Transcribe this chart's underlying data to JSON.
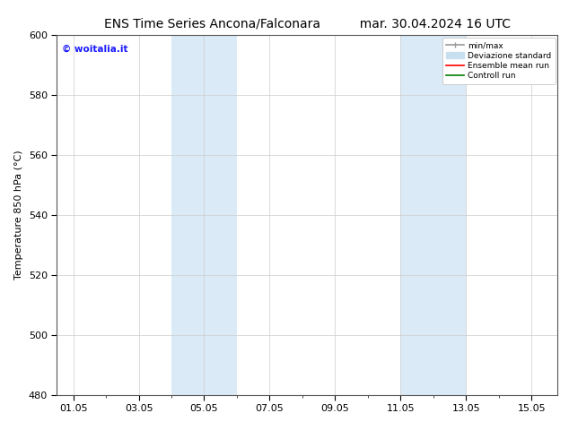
{
  "title_left": "ENS Time Series Ancona/Falconara",
  "title_right": "mar. 30.04.2024 16 UTC",
  "ylabel": "Temperature 850 hPa (°C)",
  "ylim": [
    480,
    600
  ],
  "yticks": [
    480,
    500,
    520,
    540,
    560,
    580,
    600
  ],
  "xtick_labels": [
    "01.05",
    "03.05",
    "05.05",
    "07.05",
    "09.05",
    "11.05",
    "13.05",
    "15.05"
  ],
  "xtick_positions": [
    0,
    2,
    4,
    6,
    8,
    10,
    12,
    14
  ],
  "xlim": [
    -0.5,
    14.8
  ],
  "shaded_regions": [
    {
      "x_start": 3.0,
      "x_end": 5.0
    },
    {
      "x_start": 10.0,
      "x_end": 12.0
    }
  ],
  "shaded_color": "#daeaf7",
  "background_color": "#ffffff",
  "watermark_text": "© woitalia.it",
  "watermark_color": "#1a1aff",
  "legend_minmax_color": "#999999",
  "legend_std_color": "#c8dff0",
  "legend_ens_color": "#ff0000",
  "legend_ctrl_color": "#008000",
  "title_fontsize": 10,
  "axis_fontsize": 8,
  "tick_fontsize": 8
}
